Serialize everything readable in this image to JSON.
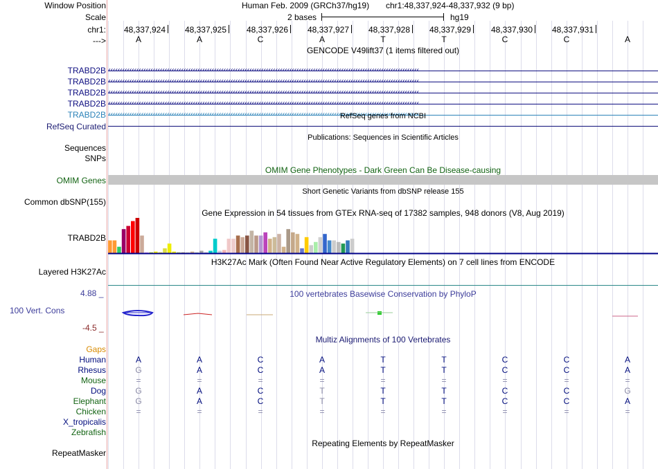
{
  "header": {
    "window_position_label": "Window Position",
    "assembly": "Human Feb. 2009 (GRCh37/hg19)",
    "position": "chr1:48,337,924-48,337,932 (9 bp)",
    "scale_label": "Scale",
    "scale_text": "2 bases",
    "scale_db": "hg19",
    "chrom_label": "chr1:",
    "strand_label": "--->"
  },
  "ruler": {
    "ticks": [
      "48,337,924",
      "48,337,925",
      "48,337,926",
      "48,337,927",
      "48,337,928",
      "48,337,929",
      "48,337,930",
      "48,337,931"
    ],
    "bases": [
      "A",
      "A",
      "C",
      "A",
      "T",
      "T",
      "C",
      "C",
      "A"
    ]
  },
  "gencode": {
    "title": "GENCODE V49lift37 (1 items filtered out)",
    "items": [
      "TRABD2B",
      "TRABD2B",
      "TRABD2B",
      "TRABD2B",
      "TRABD2B"
    ]
  },
  "refseq": {
    "title": "RefSeq genes from NCBI",
    "label": "RefSeq Curated"
  },
  "publications": {
    "title": "Publications: Sequences in Scientific Articles",
    "label1": "Sequences",
    "label2": "SNPs"
  },
  "omim": {
    "title": "OMIM Gene Phenotypes - Dark Green Can Be Disease-causing",
    "label": "OMIM Genes"
  },
  "dbsnp": {
    "title": "Short Genetic Variants from dbSNP release 155",
    "label": "Common dbSNP(155)"
  },
  "gtex": {
    "title": "Gene Expression in 54 tissues from GTEx RNA-seq of 17382 samples, 948 donors (V8, Aug 2019)",
    "label": "TRABD2B",
    "values": [
      16,
      16,
      8,
      30,
      34,
      40,
      44,
      22,
      1,
      1,
      2,
      1,
      6,
      12,
      2,
      1,
      1,
      1,
      2,
      1,
      3,
      1,
      3,
      18,
      3,
      4,
      18,
      18,
      22,
      20,
      22,
      28,
      22,
      22,
      26,
      18,
      20,
      24,
      8,
      30,
      26,
      24,
      6,
      20,
      10,
      14,
      20,
      24,
      16,
      16,
      14,
      12,
      16,
      18
    ],
    "colors": [
      "#ff9933",
      "#ff9933",
      "#33cc66",
      "#990066",
      "#cc0033",
      "#ff0000",
      "#cc0000",
      "#ccaa99",
      "#eeaaee",
      "#aadd00",
      "#eeee00",
      "#eeee00",
      "#dddd44",
      "#eeee00",
      "#eeee00",
      "#aacc44",
      "#aa9966",
      "#ccccaa",
      "#d1b28a",
      "#bbccaa",
      "#a3a3a3",
      "#bbbbbb",
      "#00cccc",
      "#00cccc",
      "#ccccdd",
      "#f2b2b2",
      "#f0c8c8",
      "#eecccc",
      "#a86f4e",
      "#ccaa99",
      "#885544",
      "#c3b4a5",
      "#bb9988",
      "#b496d2",
      "#bb44bb",
      "#d1b28a",
      "#ccbb99",
      "#ccb3a5",
      "#d1b28a",
      "#aa9988",
      "#c4a88a",
      "#d1b28a",
      "#6677cc",
      "#ffcc00",
      "#cccccc",
      "#aaeeaa",
      "#d0d0d0",
      "#3366cc",
      "#4488cc",
      "#cccccc",
      "#bbbbbb",
      "#229955",
      "#3377bb",
      "#cccccc"
    ]
  },
  "h3k27ac": {
    "title": "H3K27Ac Mark (Often Found Near Active Regulatory Elements) on 7 cell lines from ENCODE",
    "label": "Layered H3K27Ac"
  },
  "phylop": {
    "title": "100 vertebrates Basewise Conservation by PhyloP",
    "label": "100 Vert. Cons",
    "max": "4.88 _",
    "min": "-4.5 _"
  },
  "multiz": {
    "title": "Multiz Alignments of 100 Vertebrates",
    "gaps_label": "Gaps",
    "species": [
      {
        "name": "Human",
        "bases": [
          "A",
          "A",
          "C",
          "A",
          "T",
          "T",
          "C",
          "C",
          "A"
        ]
      },
      {
        "name": "Rhesus",
        "bases": [
          "G",
          "A",
          "C",
          "A",
          "T",
          "T",
          "C",
          "C",
          "A"
        ]
      },
      {
        "name": "Mouse",
        "bases": [
          "=",
          "=",
          "=",
          "=",
          "=",
          "=",
          "=",
          "=",
          "="
        ]
      },
      {
        "name": "Dog",
        "bases": [
          "G",
          "A",
          "C",
          "T",
          "T",
          "T",
          "C",
          "C",
          "G"
        ]
      },
      {
        "name": "Elephant",
        "bases": [
          "G",
          "A",
          "C",
          "T",
          "T",
          "T",
          "C",
          "C",
          "A"
        ]
      },
      {
        "name": "Chicken",
        "bases": [
          "=",
          "=",
          "=",
          "=",
          "=",
          "=",
          "=",
          "=",
          "="
        ]
      },
      {
        "name": "X_tropicalis",
        "bases": []
      },
      {
        "name": "Zebrafish",
        "bases": []
      }
    ]
  },
  "repeatmasker": {
    "title": "Repeating Elements by RepeatMasker",
    "label": "RepeatMasker"
  }
}
